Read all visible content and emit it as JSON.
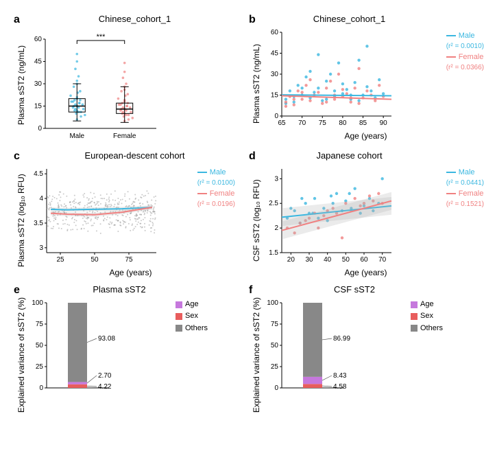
{
  "colors": {
    "male": "#3ab7e0",
    "female": "#f08080",
    "age_bar": "#c678dd",
    "sex_bar": "#e85d5d",
    "others_bar": "#888888",
    "gray_pts": "#7a7a7a",
    "axis": "#000000",
    "shade": "#b0b0b0"
  },
  "panelA": {
    "label": "a",
    "title": "Chinese_cohort_1",
    "ylabel": "Plasma sST2 (ng/mL)",
    "categories": [
      "Male",
      "Female"
    ],
    "sig": "***",
    "ylim": [
      0,
      60
    ],
    "yticks": [
      0,
      15,
      30,
      45,
      60
    ],
    "box": {
      "Male": {
        "q1": 11,
        "med": 15,
        "q3": 20,
        "wlo": 5,
        "whi": 30
      },
      "Female": {
        "q1": 10,
        "med": 13,
        "q3": 17,
        "wlo": 4,
        "whi": 28
      }
    },
    "male_pts": [
      [
        0.7,
        12
      ],
      [
        0.72,
        14
      ],
      [
        0.68,
        16
      ],
      [
        0.75,
        11
      ],
      [
        0.65,
        18
      ],
      [
        0.7,
        20
      ],
      [
        0.8,
        9
      ],
      [
        0.62,
        22
      ],
      [
        0.78,
        13
      ],
      [
        0.66,
        15
      ],
      [
        0.73,
        17
      ],
      [
        0.69,
        10
      ],
      [
        0.71,
        24
      ],
      [
        0.74,
        19
      ],
      [
        0.67,
        12
      ],
      [
        0.7,
        30
      ],
      [
        0.72,
        35
      ],
      [
        0.68,
        40
      ],
      [
        0.7,
        50
      ],
      [
        0.75,
        8
      ],
      [
        0.65,
        14
      ],
      [
        0.77,
        16
      ],
      [
        0.63,
        18
      ],
      [
        0.7,
        21
      ],
      [
        0.74,
        25
      ],
      [
        0.66,
        28
      ],
      [
        0.7,
        32
      ],
      [
        0.72,
        11
      ],
      [
        0.68,
        13
      ],
      [
        0.7,
        15
      ],
      [
        0.73,
        17
      ],
      [
        0.67,
        19
      ],
      [
        0.7,
        45
      ],
      [
        0.7,
        6
      ]
    ],
    "female_pts": [
      [
        1.3,
        10
      ],
      [
        1.32,
        12
      ],
      [
        1.28,
        14
      ],
      [
        1.35,
        9
      ],
      [
        1.25,
        16
      ],
      [
        1.3,
        18
      ],
      [
        1.4,
        7
      ],
      [
        1.22,
        20
      ],
      [
        1.38,
        11
      ],
      [
        1.26,
        13
      ],
      [
        1.33,
        15
      ],
      [
        1.29,
        8
      ],
      [
        1.31,
        22
      ],
      [
        1.34,
        17
      ],
      [
        1.27,
        10
      ],
      [
        1.3,
        26
      ],
      [
        1.32,
        30
      ],
      [
        1.28,
        34
      ],
      [
        1.3,
        44
      ],
      [
        1.35,
        6
      ],
      [
        1.25,
        12
      ],
      [
        1.37,
        14
      ],
      [
        1.23,
        16
      ],
      [
        1.3,
        19
      ],
      [
        1.34,
        23
      ],
      [
        1.26,
        25
      ],
      [
        1.3,
        28
      ],
      [
        1.32,
        9
      ],
      [
        1.28,
        11
      ],
      [
        1.3,
        13
      ],
      [
        1.33,
        15
      ],
      [
        1.27,
        17
      ],
      [
        1.3,
        38
      ],
      [
        1.3,
        5
      ]
    ]
  },
  "panelB": {
    "label": "b",
    "title": "Chinese_cohort_1",
    "ylabel": "Plasma sST2 (ng/mL)",
    "xlabel": "Age (years)",
    "xlim": [
      65,
      92
    ],
    "xticks": [
      65,
      70,
      75,
      80,
      85,
      90
    ],
    "ylim": [
      0,
      60
    ],
    "yticks": [
      0,
      15,
      30,
      45,
      60
    ],
    "legend": [
      {
        "label": "Male",
        "sub": "(r² = 0.0010)",
        "color": "male"
      },
      {
        "label": "Female",
        "sub": "(r² = 0.0366)",
        "color": "female"
      }
    ],
    "male_pts": [
      [
        66,
        12
      ],
      [
        67,
        18
      ],
      [
        68,
        10
      ],
      [
        69,
        22
      ],
      [
        70,
        15
      ],
      [
        71,
        28
      ],
      [
        72,
        13
      ],
      [
        73,
        17
      ],
      [
        74,
        20
      ],
      [
        75,
        11
      ],
      [
        76,
        25
      ],
      [
        77,
        30
      ],
      [
        78,
        14
      ],
      [
        79,
        38
      ],
      [
        80,
        16
      ],
      [
        81,
        19
      ],
      [
        82,
        12
      ],
      [
        83,
        24
      ],
      [
        84,
        40
      ],
      [
        85,
        15
      ],
      [
        86,
        21
      ],
      [
        87,
        18
      ],
      [
        88,
        13
      ],
      [
        89,
        26
      ],
      [
        90,
        16
      ],
      [
        66,
        9
      ],
      [
        68,
        14
      ],
      [
        70,
        20
      ],
      [
        72,
        32
      ],
      [
        74,
        44
      ],
      [
        76,
        12
      ],
      [
        78,
        18
      ],
      [
        80,
        23
      ],
      [
        82,
        15
      ],
      [
        84,
        11
      ],
      [
        86,
        50
      ]
    ],
    "female_pts": [
      [
        66,
        10
      ],
      [
        67,
        14
      ],
      [
        68,
        8
      ],
      [
        69,
        18
      ],
      [
        70,
        12
      ],
      [
        71,
        22
      ],
      [
        72,
        11
      ],
      [
        73,
        15
      ],
      [
        74,
        17
      ],
      [
        75,
        9
      ],
      [
        76,
        20
      ],
      [
        77,
        25
      ],
      [
        78,
        12
      ],
      [
        79,
        30
      ],
      [
        80,
        14
      ],
      [
        81,
        16
      ],
      [
        82,
        10
      ],
      [
        83,
        20
      ],
      [
        84,
        34
      ],
      [
        85,
        13
      ],
      [
        86,
        18
      ],
      [
        87,
        15
      ],
      [
        88,
        11
      ],
      [
        89,
        22
      ],
      [
        90,
        14
      ],
      [
        66,
        7
      ],
      [
        68,
        12
      ],
      [
        70,
        17
      ],
      [
        72,
        26
      ],
      [
        76,
        10
      ],
      [
        78,
        15
      ],
      [
        80,
        19
      ],
      [
        82,
        13
      ],
      [
        84,
        9
      ]
    ],
    "male_line": {
      "y0": 15.2,
      "y1": 14.5
    },
    "female_line": {
      "y0": 14.5,
      "y1": 12.0
    }
  },
  "panelC": {
    "label": "c",
    "title": "European-descent cohort",
    "ylabel": "Plasma sST2 (log₁₀ RFU)",
    "xlabel": "Age (years)",
    "xlim": [
      15,
      95
    ],
    "xticks": [
      25,
      50,
      75
    ],
    "ylim": [
      2.9,
      4.6
    ],
    "yticks": [
      3.0,
      3.5,
      4.0,
      4.5
    ],
    "legend": [
      {
        "label": "Male",
        "sub": "(r² = 0.0100)",
        "color": "male"
      },
      {
        "label": "Female",
        "sub": "(r² = 0.0196)",
        "color": "female"
      }
    ],
    "n_gray_pts": 450,
    "male_line": {
      "pts": [
        [
          18,
          3.78
        ],
        [
          30,
          3.77
        ],
        [
          50,
          3.78
        ],
        [
          70,
          3.79
        ],
        [
          92,
          3.82
        ]
      ]
    },
    "female_line": {
      "pts": [
        [
          18,
          3.7
        ],
        [
          30,
          3.68
        ],
        [
          50,
          3.67
        ],
        [
          70,
          3.72
        ],
        [
          92,
          3.82
        ]
      ]
    },
    "band_width": 0.04
  },
  "panelD": {
    "label": "d",
    "title": "Japanese cohort",
    "ylabel": "CSF sST2 (log₁₀ RFU)",
    "xlabel": "Age (years)",
    "xlim": [
      15,
      75
    ],
    "xticks": [
      20,
      30,
      40,
      50,
      60,
      70
    ],
    "ylim": [
      1.5,
      3.2
    ],
    "yticks": [
      1.5,
      2.0,
      2.5,
      3.0
    ],
    "legend": [
      {
        "label": "Male",
        "sub": "(r² = 0.0441)",
        "color": "male"
      },
      {
        "label": "Female",
        "sub": "(r² = 0.1521)",
        "color": "female"
      }
    ],
    "male_pts": [
      [
        18,
        2.2
      ],
      [
        22,
        2.35
      ],
      [
        25,
        2.1
      ],
      [
        28,
        2.5
      ],
      [
        30,
        2.3
      ],
      [
        33,
        2.6
      ],
      [
        35,
        2.2
      ],
      [
        38,
        2.4
      ],
      [
        40,
        2.15
      ],
      [
        43,
        2.5
      ],
      [
        45,
        2.7
      ],
      [
        48,
        2.35
      ],
      [
        50,
        2.55
      ],
      [
        53,
        2.4
      ],
      [
        55,
        2.8
      ],
      [
        58,
        2.3
      ],
      [
        60,
        2.45
      ],
      [
        63,
        2.6
      ],
      [
        65,
        2.35
      ],
      [
        68,
        2.5
      ],
      [
        70,
        3.0
      ],
      [
        20,
        2.4
      ],
      [
        26,
        2.6
      ],
      [
        32,
        2.3
      ],
      [
        42,
        2.65
      ],
      [
        52,
        2.7
      ]
    ],
    "female_pts": [
      [
        18,
        2.0
      ],
      [
        22,
        1.9
      ],
      [
        25,
        2.1
      ],
      [
        28,
        2.15
      ],
      [
        30,
        2.2
      ],
      [
        33,
        2.3
      ],
      [
        35,
        2.0
      ],
      [
        38,
        2.25
      ],
      [
        40,
        2.35
      ],
      [
        43,
        2.4
      ],
      [
        45,
        2.3
      ],
      [
        48,
        1.8
      ],
      [
        50,
        2.5
      ],
      [
        53,
        2.35
      ],
      [
        55,
        2.6
      ],
      [
        58,
        2.45
      ],
      [
        60,
        2.5
      ],
      [
        63,
        2.65
      ],
      [
        65,
        2.55
      ],
      [
        68,
        2.7
      ],
      [
        70,
        2.5
      ]
    ],
    "male_line": {
      "y0": 2.22,
      "y1": 2.45
    },
    "female_line": {
      "y0": 1.95,
      "y1": 2.55
    },
    "band_width": 0.18
  },
  "panelE": {
    "label": "e",
    "title": "Plasma sST2",
    "ylabel": "Explained variance of sST2 (%)",
    "ylim": [
      0,
      100
    ],
    "yticks": [
      0,
      25,
      50,
      75,
      100
    ],
    "segments": [
      {
        "name": "Sex",
        "value": 4.22,
        "color": "sex_bar"
      },
      {
        "name": "Age",
        "value": 2.7,
        "color": "age_bar"
      },
      {
        "name": "Others",
        "value": 93.08,
        "color": "others_bar"
      }
    ],
    "legend": [
      {
        "name": "Age",
        "color": "age_bar"
      },
      {
        "name": "Sex",
        "color": "sex_bar"
      },
      {
        "name": "Others",
        "color": "others_bar"
      }
    ]
  },
  "panelF": {
    "label": "f",
    "title": "CSF sST2",
    "ylabel": "Explained variance of sST2 (%)",
    "ylim": [
      0,
      100
    ],
    "yticks": [
      0,
      25,
      50,
      75,
      100
    ],
    "segments": [
      {
        "name": "Sex",
        "value": 4.58,
        "color": "sex_bar"
      },
      {
        "name": "Age",
        "value": 8.43,
        "color": "age_bar"
      },
      {
        "name": "Others",
        "value": 86.99,
        "color": "others_bar"
      }
    ],
    "legend": [
      {
        "name": "Age",
        "color": "age_bar"
      },
      {
        "name": "Sex",
        "color": "sex_bar"
      },
      {
        "name": "Others",
        "color": "others_bar"
      }
    ]
  }
}
